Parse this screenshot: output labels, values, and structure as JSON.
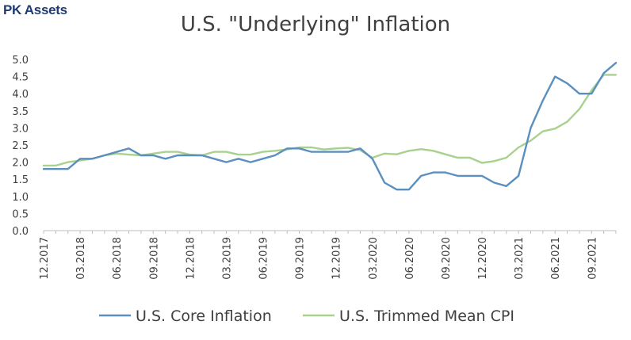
{
  "brand": "PK Assets",
  "chart_data": {
    "type": "line",
    "title": "U.S. \"Underlying\" Inflation",
    "xlabel": "",
    "ylabel": "",
    "ylim": [
      0,
      5
    ],
    "yticks": [
      "0.0",
      "0.5",
      "1.0",
      "1.5",
      "2.0",
      "2.5",
      "3.0",
      "3.5",
      "4.0",
      "4.5",
      "5.0"
    ],
    "grid": false,
    "legend_position": "bottom",
    "x": [
      "12.2017",
      "01.2018",
      "02.2018",
      "03.2018",
      "04.2018",
      "05.2018",
      "06.2018",
      "07.2018",
      "08.2018",
      "09.2018",
      "10.2018",
      "11.2018",
      "12.2018",
      "01.2019",
      "02.2019",
      "03.2019",
      "04.2019",
      "05.2019",
      "06.2019",
      "07.2019",
      "08.2019",
      "09.2019",
      "10.2019",
      "11.2019",
      "12.2019",
      "01.2020",
      "02.2020",
      "03.2020",
      "04.2020",
      "05.2020",
      "06.2020",
      "07.2020",
      "08.2020",
      "09.2020",
      "10.2020",
      "11.2020",
      "12.2020",
      "01.2021",
      "02.2021",
      "03.2021",
      "04.2021",
      "05.2021",
      "06.2021",
      "07.2021",
      "08.2021",
      "09.2021",
      "10.2021",
      "11.2021"
    ],
    "xtick_labels": [
      "12.2017",
      "03.2018",
      "06.2018",
      "09.2018",
      "12.2018",
      "03.2019",
      "06.2019",
      "09.2019",
      "12.2019",
      "03.2020",
      "06.2020",
      "09.2020",
      "12.2020",
      "03.2021",
      "06.2021",
      "09.2021"
    ],
    "series": [
      {
        "name": "U.S. Core Inflation",
        "color": "#5b8fbf",
        "values": [
          1.8,
          1.8,
          1.8,
          2.1,
          2.1,
          2.2,
          2.3,
          2.4,
          2.2,
          2.2,
          2.1,
          2.2,
          2.2,
          2.2,
          2.1,
          2.0,
          2.1,
          2.0,
          2.1,
          2.2,
          2.4,
          2.4,
          2.3,
          2.3,
          2.3,
          2.3,
          2.4,
          2.1,
          1.4,
          1.2,
          1.2,
          1.6,
          1.7,
          1.7,
          1.6,
          1.6,
          1.6,
          1.4,
          1.3,
          1.6,
          3.0,
          3.8,
          4.5,
          4.3,
          4.0,
          4.0,
          4.6,
          4.9
        ]
      },
      {
        "name": "U.S. Trimmed Mean CPI",
        "color": "#a9d18e",
        "values": [
          1.9,
          1.9,
          2.0,
          2.05,
          2.1,
          2.2,
          2.25,
          2.22,
          2.2,
          2.25,
          2.3,
          2.3,
          2.22,
          2.2,
          2.3,
          2.3,
          2.22,
          2.22,
          2.3,
          2.33,
          2.37,
          2.43,
          2.43,
          2.37,
          2.4,
          2.42,
          2.35,
          2.13,
          2.25,
          2.23,
          2.33,
          2.38,
          2.33,
          2.23,
          2.13,
          2.13,
          1.98,
          2.03,
          2.13,
          2.43,
          2.63,
          2.9,
          2.98,
          3.18,
          3.55,
          4.1,
          4.55,
          4.55
        ]
      }
    ]
  }
}
